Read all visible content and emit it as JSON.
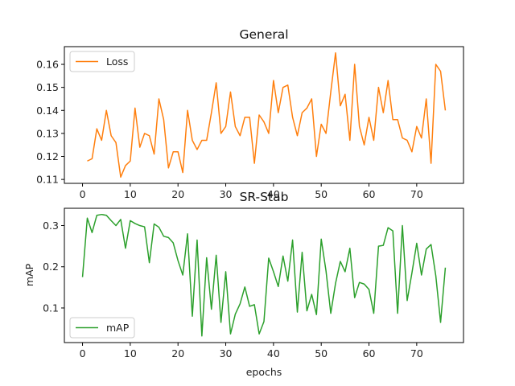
{
  "chart_data": [
    {
      "type": "line",
      "title": "General",
      "xlabel": "",
      "ylabel": "",
      "xlim": [
        -3.8,
        79.8
      ],
      "ylim": [
        0.1083,
        0.1677
      ],
      "xticks": [
        0,
        10,
        20,
        30,
        40,
        50,
        60,
        70
      ],
      "yticks": [
        0.11,
        0.12,
        0.13,
        0.14,
        0.15,
        0.16
      ],
      "ytick_labels": [
        "0.11",
        "0.12",
        "0.13",
        "0.14",
        "0.15",
        "0.16"
      ],
      "grid": false,
      "legend_position": "upper-left",
      "series": [
        {
          "name": "Loss",
          "color": "#ff7f0e",
          "x": [
            1,
            2,
            3,
            4,
            5,
            6,
            7,
            8,
            9,
            10,
            11,
            12,
            13,
            14,
            15,
            16,
            17,
            18,
            19,
            20,
            21,
            22,
            23,
            24,
            25,
            26,
            27,
            28,
            29,
            30,
            31,
            32,
            33,
            34,
            35,
            36,
            37,
            38,
            39,
            40,
            41,
            42,
            43,
            44,
            45,
            46,
            47,
            48,
            49,
            50,
            51,
            52,
            53,
            54,
            55,
            56,
            57,
            58,
            59,
            60,
            61,
            62,
            63,
            64,
            65,
            66,
            67,
            68,
            69,
            70,
            71,
            72,
            73,
            74,
            75,
            76
          ],
          "values": [
            0.118,
            0.119,
            0.132,
            0.127,
            0.14,
            0.129,
            0.126,
            0.111,
            0.116,
            0.118,
            0.141,
            0.124,
            0.13,
            0.129,
            0.121,
            0.145,
            0.136,
            0.115,
            0.122,
            0.122,
            0.113,
            0.14,
            0.127,
            0.123,
            0.127,
            0.127,
            0.139,
            0.152,
            0.13,
            0.133,
            0.148,
            0.133,
            0.129,
            0.137,
            0.137,
            0.117,
            0.138,
            0.135,
            0.13,
            0.153,
            0.139,
            0.15,
            0.151,
            0.137,
            0.129,
            0.139,
            0.141,
            0.145,
            0.12,
            0.134,
            0.13,
            0.148,
            0.165,
            0.142,
            0.147,
            0.127,
            0.16,
            0.133,
            0.125,
            0.137,
            0.127,
            0.15,
            0.139,
            0.153,
            0.136,
            0.136,
            0.128,
            0.127,
            0.122,
            0.133,
            0.128,
            0.145,
            0.117,
            0.16,
            0.157,
            0.14
          ]
        }
      ]
    },
    {
      "type": "line",
      "title": "SR-Stab",
      "xlabel": "epochs",
      "ylabel": "mAP",
      "xlim": [
        -3.8,
        79.8
      ],
      "ylim": [
        0.016,
        0.342
      ],
      "xticks": [
        0,
        10,
        20,
        30,
        40,
        50,
        60,
        70
      ],
      "yticks": [
        0.1,
        0.2,
        0.3
      ],
      "ytick_labels": [
        "0.1",
        "0.2",
        "0.3"
      ],
      "grid": false,
      "legend_position": "lower-left",
      "series": [
        {
          "name": "mAP",
          "color": "#2ca02c",
          "x": [
            0,
            1,
            2,
            3,
            4,
            5,
            6,
            7,
            8,
            9,
            10,
            11,
            12,
            13,
            14,
            15,
            16,
            17,
            18,
            19,
            20,
            21,
            22,
            23,
            24,
            25,
            26,
            27,
            28,
            29,
            30,
            31,
            32,
            33,
            34,
            35,
            36,
            37,
            38,
            39,
            40,
            41,
            42,
            43,
            44,
            45,
            46,
            47,
            48,
            49,
            50,
            51,
            52,
            53,
            54,
            55,
            56,
            57,
            58,
            59,
            60,
            61,
            62,
            63,
            64,
            65,
            66,
            67,
            68,
            69,
            70,
            71,
            72,
            73,
            74,
            75,
            76
          ],
          "values": [
            0.175,
            0.318,
            0.283,
            0.325,
            0.327,
            0.325,
            0.312,
            0.3,
            0.315,
            0.245,
            0.312,
            0.305,
            0.3,
            0.297,
            0.21,
            0.304,
            0.296,
            0.274,
            0.271,
            0.258,
            0.215,
            0.18,
            0.28,
            0.08,
            0.265,
            0.032,
            0.222,
            0.097,
            0.228,
            0.065,
            0.188,
            0.037,
            0.085,
            0.11,
            0.151,
            0.104,
            0.108,
            0.037,
            0.067,
            0.221,
            0.188,
            0.152,
            0.226,
            0.165,
            0.265,
            0.09,
            0.235,
            0.093,
            0.133,
            0.084,
            0.267,
            0.19,
            0.087,
            0.16,
            0.213,
            0.188,
            0.245,
            0.125,
            0.162,
            0.158,
            0.145,
            0.087,
            0.25,
            0.252,
            0.295,
            0.287,
            0.087,
            0.3,
            0.118,
            0.185,
            0.257,
            0.18,
            0.243,
            0.254,
            0.178,
            0.065,
            0.198
          ]
        }
      ]
    }
  ]
}
